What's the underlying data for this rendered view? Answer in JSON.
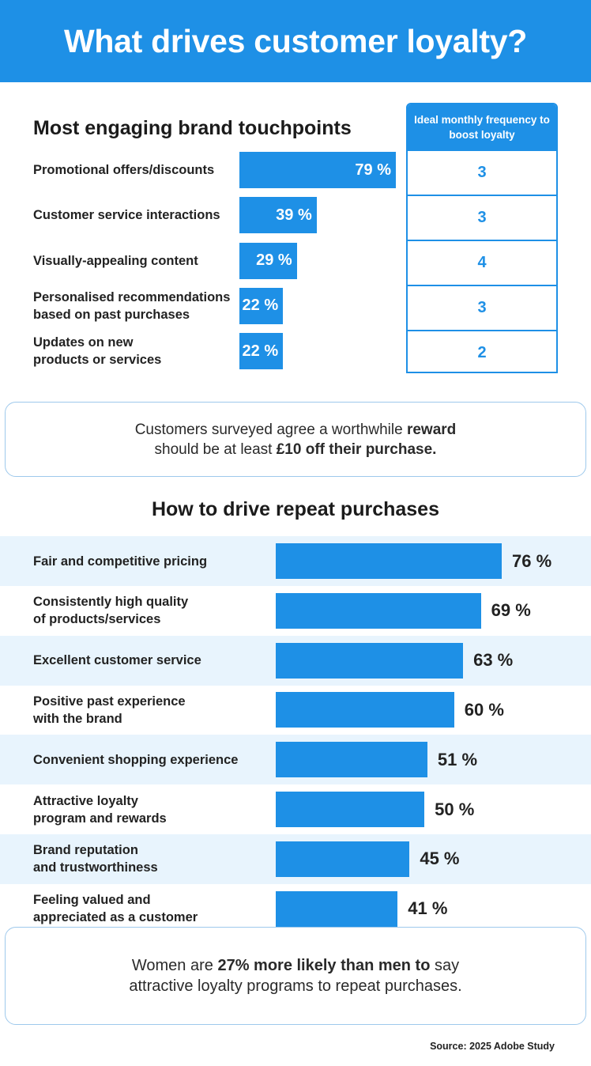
{
  "header": {
    "title": "What drives customer loyalty?"
  },
  "touchpoints": {
    "title": "Most engaging brand touchpoints",
    "frequency_header": "Ideal monthly frequency to boost loyalty",
    "frequency_values": [
      "3",
      "3",
      "4",
      "3",
      "2"
    ]
  },
  "callout1": {
    "line1_prefix": "Customers surveyed agree a worthwhile ",
    "line1_bold": "reward",
    "line2_prefix": "should be at least ",
    "line2_bold": "£10 off their purchase."
  },
  "repeat": {
    "title": "How to drive repeat purchases"
  },
  "callout2": {
    "line1_prefix": "Women are ",
    "line1_bold": "27% more likely than men to",
    "line1_suffix": " say",
    "line2": "attractive loyalty programs to repeat purchases."
  },
  "source": "Source: 2025 Adobe Study",
  "colors": {
    "accent": "#1e90e6",
    "row_shade": "#e8f4fd",
    "border": "#9ec9ec"
  },
  "chart_data": [
    {
      "type": "bar",
      "orientation": "horizontal",
      "title": "Most engaging brand touchpoints",
      "categories": [
        "Promotional offers/discounts",
        "Customer service interactions",
        "Visually-appealing content",
        "Personalised recommendations based on past purchases",
        "Updates on new products or services"
      ],
      "values": [
        79,
        39,
        29,
        22,
        22
      ],
      "value_labels": [
        "79 %",
        "39 %",
        "29 %",
        "22 %",
        "22 %"
      ],
      "xlim": [
        0,
        100
      ]
    },
    {
      "type": "bar",
      "orientation": "horizontal",
      "title": "How to drive repeat purchases",
      "categories": [
        "Fair and competitive pricing",
        "Consistently high quality of products/services",
        "Excellent customer service",
        "Positive past experience with the brand",
        "Convenient shopping experience",
        "Attractive loyalty program and rewards",
        "Brand reputation and trustworthiness",
        "Feeling valued and appreciated as a customer"
      ],
      "values": [
        76,
        69,
        63,
        60,
        51,
        50,
        45,
        41
      ],
      "value_labels": [
        "76 %",
        "69 %",
        "63 %",
        "60 %",
        "51 %",
        "50 %",
        "45 %",
        "41 %"
      ],
      "xlim": [
        0,
        100
      ]
    }
  ]
}
